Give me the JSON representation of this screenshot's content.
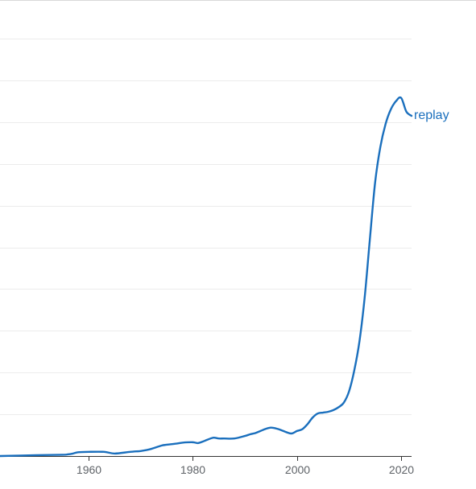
{
  "chart_data": {
    "type": "line",
    "title": "",
    "xlabel": "",
    "ylabel": "",
    "xlim": [
      1943,
      2022
    ],
    "ylim": [
      0,
      10
    ],
    "x_ticks": [
      1960,
      1980,
      2000,
      2020
    ],
    "y_grid_values": [
      1,
      2,
      3,
      4,
      5,
      6,
      7,
      8,
      9,
      10
    ],
    "grid": true,
    "color": "#1a6fbd",
    "series": [
      {
        "name": "replay",
        "x": [
          1943,
          1950,
          1955,
          1956,
          1957,
          1958,
          1960,
          1963,
          1965,
          1968,
          1970,
          1971,
          1972,
          1974,
          1975,
          1977,
          1978,
          1980,
          1981,
          1982,
          1983,
          1984,
          1985,
          1986,
          1988,
          1990,
          1991,
          1992,
          1993,
          1994,
          1995,
          1996,
          1997,
          1998,
          1999,
          2000,
          2001,
          2002,
          2003,
          2004,
          2005,
          2006,
          2007,
          2008,
          2009,
          2010,
          2011,
          2012,
          2013,
          2014,
          2015,
          2016,
          2017,
          2018,
          2019,
          2020,
          2021,
          2022
        ],
        "values": [
          0.0,
          0.02,
          0.03,
          0.04,
          0.06,
          0.09,
          0.1,
          0.1,
          0.06,
          0.1,
          0.12,
          0.14,
          0.17,
          0.25,
          0.27,
          0.3,
          0.32,
          0.33,
          0.31,
          0.35,
          0.4,
          0.44,
          0.42,
          0.42,
          0.42,
          0.48,
          0.52,
          0.55,
          0.6,
          0.65,
          0.68,
          0.66,
          0.62,
          0.57,
          0.54,
          0.6,
          0.64,
          0.76,
          0.92,
          1.02,
          1.04,
          1.06,
          1.1,
          1.17,
          1.28,
          1.55,
          2.05,
          2.75,
          3.8,
          5.2,
          6.55,
          7.4,
          7.95,
          8.3,
          8.5,
          8.58,
          8.25,
          8.15
        ]
      }
    ]
  }
}
